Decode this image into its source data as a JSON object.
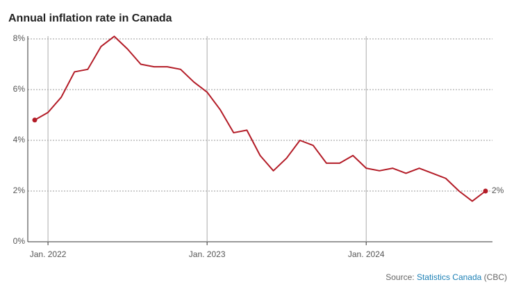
{
  "chart_data": {
    "type": "line",
    "title": "Annual inflation rate in Canada",
    "categories": [
      null,
      "Jan. 2022",
      null,
      null,
      null,
      null,
      null,
      null,
      null,
      null,
      null,
      null,
      null,
      "Jan. 2023",
      null,
      null,
      null,
      null,
      null,
      null,
      null,
      null,
      null,
      null,
      null,
      "Jan. 2024",
      null,
      null,
      null,
      null,
      null,
      null,
      null,
      null,
      null
    ],
    "series": [
      {
        "color": "#b31b26",
        "values": [
          4.8,
          5.1,
          5.7,
          6.7,
          6.8,
          7.7,
          8.1,
          7.6,
          7.0,
          6.9,
          6.9,
          6.8,
          6.3,
          5.9,
          5.2,
          4.3,
          4.4,
          3.4,
          2.8,
          3.3,
          4.0,
          3.8,
          3.1,
          3.1,
          3.4,
          2.9,
          2.8,
          2.9,
          2.7,
          2.9,
          2.7,
          2.5,
          2.0,
          1.6,
          2.0
        ],
        "value_labels": [
          null,
          null,
          null,
          null,
          null,
          null,
          null,
          null,
          null,
          null,
          null,
          null,
          null,
          null,
          null,
          null,
          null,
          null,
          null,
          null,
          null,
          null,
          null,
          null,
          null,
          null,
          null,
          null,
          null,
          null,
          null,
          null,
          null,
          null,
          "2%"
        ]
      }
    ],
    "ylim": [
      0,
      8
    ],
    "yticks": [
      {
        "value": 0,
        "label": "0%"
      },
      {
        "value": 2,
        "label": "2%"
      },
      {
        "value": 4,
        "label": "4%"
      },
      {
        "value": 6,
        "label": "6%"
      },
      {
        "value": 8,
        "label": "8%"
      }
    ],
    "grid": true,
    "source": {
      "prefix": "Source:",
      "link": "Statistics Canada",
      "suffix": "(CBC)"
    }
  }
}
